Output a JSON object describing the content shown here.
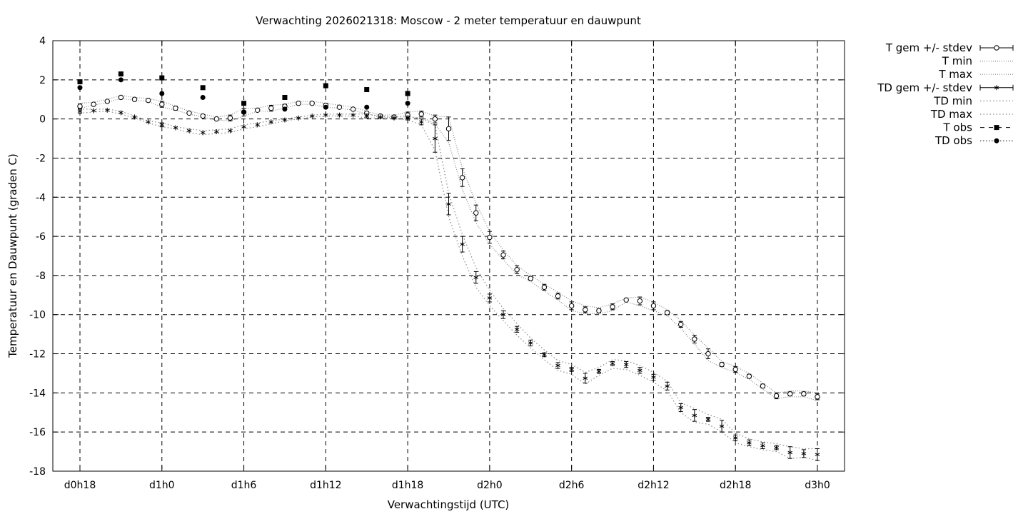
{
  "chart_data": {
    "type": "line",
    "title": "Verwachting 2026021318: Moscow - 2 meter temperatuur en dauwpunt",
    "xlabel": "Verwachtingstijd (UTC)",
    "ylabel": "Temperatuur en Dauwpunt (graden C)",
    "xlim": [
      18,
      72
    ],
    "ylim": [
      -18,
      4
    ],
    "x_ticks": [
      {
        "x": 18,
        "label": "d0h18"
      },
      {
        "x": 24,
        "label": "d1h0"
      },
      {
        "x": 30,
        "label": "d1h6"
      },
      {
        "x": 36,
        "label": "d1h12"
      },
      {
        "x": 42,
        "label": "d1h18"
      },
      {
        "x": 48,
        "label": "d2h0"
      },
      {
        "x": 54,
        "label": "d2h6"
      },
      {
        "x": 60,
        "label": "d2h12"
      },
      {
        "x": 66,
        "label": "d2h18"
      },
      {
        "x": 72,
        "label": "d3h0"
      }
    ],
    "y_ticks": [
      4,
      2,
      0,
      -2,
      -4,
      -6,
      -8,
      -10,
      -12,
      -14,
      -16,
      -18
    ],
    "grid": true,
    "legend_position": "outside-right",
    "x": [
      18,
      19,
      20,
      21,
      22,
      23,
      24,
      25,
      26,
      27,
      28,
      29,
      30,
      31,
      32,
      33,
      34,
      35,
      36,
      37,
      38,
      39,
      40,
      41,
      42,
      43,
      44,
      45,
      46,
      47,
      48,
      49,
      50,
      51,
      52,
      53,
      54,
      55,
      56,
      57,
      58,
      59,
      60,
      61,
      62,
      63,
      64,
      65,
      66,
      67,
      68,
      69,
      70,
      71,
      72
    ],
    "series": [
      {
        "name": "T gem +/- stdev",
        "marker": "open-circle",
        "values": [
          0.65,
          0.75,
          0.9,
          1.1,
          1.0,
          0.95,
          0.75,
          0.55,
          0.3,
          0.15,
          0.0,
          0.05,
          0.35,
          0.45,
          0.55,
          0.65,
          0.8,
          0.8,
          0.7,
          0.6,
          0.5,
          0.3,
          0.15,
          0.1,
          0.2,
          0.25,
          0.0,
          -0.5,
          -3.0,
          -4.8,
          -6.05,
          -6.95,
          -7.7,
          -8.15,
          -8.6,
          -9.05,
          -9.55,
          -9.75,
          -9.8,
          -9.6,
          -9.25,
          -9.3,
          -9.55,
          -9.9,
          -10.5,
          -11.25,
          -12.0,
          -12.55,
          -12.8,
          -13.15,
          -13.65,
          -14.15,
          -14.05,
          -14.05,
          -14.2
        ],
        "stdev": [
          0.12,
          0.05,
          0.05,
          0.05,
          0.05,
          0.05,
          0.15,
          0.1,
          0.05,
          0.05,
          0.05,
          0.15,
          0.2,
          0.05,
          0.15,
          0.1,
          0.05,
          0.05,
          0.1,
          0.05,
          0.05,
          0.05,
          0.05,
          0.05,
          0.15,
          0.15,
          0.2,
          0.6,
          0.45,
          0.4,
          0.3,
          0.2,
          0.2,
          0.1,
          0.15,
          0.15,
          0.2,
          0.15,
          0.1,
          0.15,
          0.05,
          0.2,
          0.2,
          0.1,
          0.15,
          0.2,
          0.25,
          0.1,
          0.15,
          0.1,
          0.1,
          0.15,
          0.1,
          0.1,
          0.15
        ]
      },
      {
        "name": "T min",
        "values": [
          0.55,
          0.7,
          0.85,
          1.05,
          0.95,
          0.9,
          0.6,
          0.45,
          0.25,
          0.1,
          -0.05,
          -0.1,
          0.15,
          0.4,
          0.4,
          0.55,
          0.75,
          0.75,
          0.6,
          0.55,
          0.45,
          0.25,
          0.1,
          0.05,
          0.05,
          0.1,
          -0.25,
          -1.2,
          -3.6,
          -5.3,
          -6.4,
          -7.2,
          -7.95,
          -8.3,
          -8.8,
          -9.25,
          -9.8,
          -9.95,
          -9.95,
          -9.8,
          -9.35,
          -9.55,
          -9.8,
          -10.05,
          -10.7,
          -11.5,
          -12.35,
          -12.7,
          -12.95,
          -13.3,
          -13.8,
          -14.3,
          -14.2,
          -14.2,
          -14.4
        ]
      },
      {
        "name": "T max",
        "values": [
          0.8,
          0.85,
          1.0,
          1.2,
          1.1,
          1.05,
          0.9,
          0.65,
          0.4,
          0.25,
          0.1,
          0.2,
          0.55,
          0.55,
          0.7,
          0.75,
          0.9,
          0.9,
          0.8,
          0.7,
          0.6,
          0.4,
          0.2,
          0.2,
          0.35,
          0.4,
          0.15,
          0.1,
          -2.5,
          -4.3,
          -5.75,
          -6.7,
          -7.5,
          -8.0,
          -8.45,
          -8.85,
          -9.3,
          -9.55,
          -9.65,
          -9.45,
          -9.15,
          -9.1,
          -9.35,
          -9.75,
          -10.3,
          -11.05,
          -11.7,
          -12.4,
          -12.65,
          -13.0,
          -13.5,
          -14.0,
          -13.9,
          -13.9,
          -14.0
        ]
      },
      {
        "name": "TD gem +/- stdev",
        "marker": "star",
        "values": [
          0.4,
          0.42,
          0.45,
          0.32,
          0.1,
          -0.15,
          -0.3,
          -0.45,
          -0.6,
          -0.7,
          -0.65,
          -0.6,
          -0.4,
          -0.3,
          -0.15,
          -0.05,
          0.05,
          0.15,
          0.2,
          0.2,
          0.2,
          0.15,
          0.1,
          0.05,
          0.05,
          -0.15,
          -1.0,
          -4.35,
          -6.4,
          -8.1,
          -9.15,
          -10.0,
          -10.75,
          -11.45,
          -12.05,
          -12.6,
          -12.8,
          -13.25,
          -12.9,
          -12.5,
          -12.55,
          -12.85,
          -13.2,
          -13.65,
          -14.75,
          -15.15,
          -15.35,
          -15.7,
          -16.3,
          -16.55,
          -16.7,
          -16.8,
          -17.05,
          -17.1,
          -17.15
        ],
        "stdev": [
          0.1,
          0.05,
          0.05,
          0.05,
          0.05,
          0.05,
          0.1,
          0.05,
          0.05,
          0.05,
          0.05,
          0.05,
          0.05,
          0.05,
          0.05,
          0.05,
          0.05,
          0.05,
          0.05,
          0.05,
          0.05,
          0.1,
          0.05,
          0.05,
          0.1,
          0.15,
          0.7,
          0.55,
          0.4,
          0.3,
          0.2,
          0.2,
          0.15,
          0.15,
          0.1,
          0.15,
          0.1,
          0.25,
          0.1,
          0.1,
          0.15,
          0.15,
          0.15,
          0.2,
          0.2,
          0.3,
          0.1,
          0.3,
          0.15,
          0.15,
          0.15,
          0.1,
          0.3,
          0.2,
          0.3
        ]
      },
      {
        "name": "TD min",
        "values": [
          0.3,
          0.35,
          0.4,
          0.25,
          0.05,
          -0.2,
          -0.4,
          -0.5,
          -0.7,
          -0.8,
          -0.75,
          -0.7,
          -0.5,
          -0.4,
          -0.25,
          -0.1,
          0.0,
          0.1,
          0.15,
          0.15,
          0.15,
          0.05,
          0.05,
          0.0,
          -0.05,
          -0.3,
          -1.6,
          -5.0,
          -7.0,
          -8.6,
          -9.55,
          -10.3,
          -11.05,
          -11.7,
          -12.3,
          -12.85,
          -13.05,
          -13.55,
          -13.1,
          -12.75,
          -12.8,
          -13.1,
          -13.45,
          -13.9,
          -15.0,
          -15.5,
          -15.6,
          -16.0,
          -16.55,
          -16.75,
          -16.9,
          -17.0,
          -17.35,
          -17.3,
          -17.45
        ]
      },
      {
        "name": "TD max",
        "values": [
          0.5,
          0.5,
          0.5,
          0.4,
          0.15,
          -0.1,
          -0.2,
          -0.4,
          -0.5,
          -0.6,
          -0.55,
          -0.5,
          -0.3,
          -0.2,
          -0.1,
          0.0,
          0.1,
          0.2,
          0.25,
          0.25,
          0.25,
          0.25,
          0.15,
          0.1,
          0.15,
          0.0,
          -0.3,
          -3.8,
          -5.9,
          -7.6,
          -8.75,
          -9.7,
          -10.45,
          -11.2,
          -11.8,
          -12.35,
          -12.55,
          -12.95,
          -12.7,
          -12.3,
          -12.35,
          -12.6,
          -12.95,
          -13.4,
          -14.5,
          -14.8,
          -15.1,
          -15.35,
          -16.05,
          -16.35,
          -16.5,
          -16.6,
          -16.75,
          -16.85,
          -16.85
        ]
      },
      {
        "name": "T obs",
        "marker": "filled-square",
        "x": [
          18,
          21,
          24,
          27,
          30,
          33,
          36,
          39,
          42
        ],
        "values": [
          1.9,
          2.3,
          2.1,
          1.6,
          0.8,
          1.1,
          1.7,
          1.5,
          1.3
        ]
      },
      {
        "name": "TD obs",
        "marker": "filled-circle",
        "x": [
          18,
          21,
          24,
          27,
          30,
          33,
          36,
          39,
          42
        ],
        "values": [
          1.6,
          2.0,
          1.3,
          1.1,
          0.35,
          0.5,
          0.6,
          0.6,
          0.8
        ]
      }
    ]
  }
}
